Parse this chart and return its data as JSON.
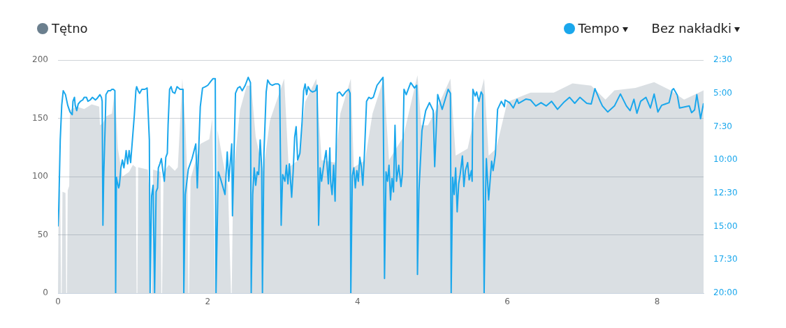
{
  "chart_data": {
    "type": "line",
    "legend": "top",
    "grid": "y",
    "marker": "none",
    "line_style": "solid",
    "xlim": [
      0,
      8.62
    ],
    "xticks": [
      0,
      2,
      4,
      6,
      8
    ],
    "ylim": [
      0,
      200
    ],
    "yticks": [
      0,
      50,
      100,
      150,
      200
    ],
    "y2lim": [
      20,
      2.5
    ],
    "y2ticks": [
      {
        "value": 2.5,
        "label": "2:30"
      },
      {
        "value": 5,
        "label": "5:00"
      },
      {
        "value": 7.5,
        "label": "7:30"
      },
      {
        "value": 10,
        "label": "10:00"
      },
      {
        "value": 12.5,
        "label": "12:30"
      },
      {
        "value": 15,
        "label": "15:00"
      },
      {
        "value": 17.5,
        "label": "17:30"
      },
      {
        "value": 20,
        "label": "20:00"
      }
    ],
    "annotations": [
      "Bez nakładki"
    ],
    "series": [
      {
        "name": "Tętno",
        "type": "area",
        "color": "#6b7f8e",
        "x": [
          0,
          0.01,
          0.03,
          0.04,
          0.05,
          0.06,
          0.1,
          0.11,
          0.12,
          0.13,
          0.15,
          0.16,
          0.25,
          0.35,
          0.45,
          0.55,
          0.56,
          0.6,
          0.65,
          0.72,
          0.76,
          0.8,
          0.86,
          0.95,
          1,
          1.04,
          1.05,
          1.06,
          1.07,
          1.2,
          1.22,
          1.24,
          1.25,
          1.27,
          1.37,
          1.38,
          1.39,
          1.41,
          1.48,
          1.56,
          1.6,
          1.66,
          1.7,
          1.73,
          1.74,
          1.75,
          1.77,
          1.9,
          2.02,
          2.06,
          2.1,
          2.11,
          2.13,
          2.2,
          2.27,
          2.31,
          2.32,
          2.34,
          2.43,
          2.52,
          2.58,
          2.64,
          2.74,
          2.83,
          3.02,
          3.08,
          3.21,
          3.3,
          3.45,
          3.52,
          3.7,
          3.77,
          3.91,
          3.95,
          4.1,
          4.2,
          4.35,
          4.42,
          4.61,
          4.8,
          4.85,
          4.94,
          5.07,
          5.24,
          5.31,
          5.47,
          5.57,
          5.69,
          5.75,
          5.85,
          6,
          6.31,
          6.62,
          6.87,
          7.12,
          7.31,
          7.43,
          7.71,
          7.96,
          8.18,
          8.36,
          8.62
        ],
        "values": [
          0,
          90,
          88,
          0,
          0,
          87,
          86,
          0,
          0,
          88,
          92,
          157,
          160,
          158,
          162,
          160,
          144,
          146,
          152,
          154,
          174,
          124,
          100,
          104,
          110,
          108,
          0,
          0,
          108,
          106,
          84,
          0,
          0,
          106,
          104,
          0,
          0,
          104,
          110,
          105,
          108,
          184,
          144,
          95,
          0,
          0,
          98,
          128,
          132,
          150,
          0,
          0,
          140,
          114,
          92,
          0,
          0,
          100,
          157,
          178,
          178,
          134,
          104,
          148,
          184,
          108,
          114,
          164,
          184,
          114,
          112,
          154,
          184,
          108,
          114,
          154,
          184,
          114,
          134,
          187,
          144,
          144,
          160,
          184,
          118,
          124,
          154,
          184,
          118,
          124,
          164,
          172,
          172,
          180,
          178,
          166,
          174,
          176,
          181,
          174,
          166,
          174
        ]
      },
      {
        "name": "Tempo",
        "type": "line",
        "axis": "y2",
        "color": "#1aa7ec",
        "x": [
          0,
          0.01,
          0.03,
          0.05,
          0.07,
          0.1,
          0.13,
          0.16,
          0.19,
          0.2,
          0.22,
          0.23,
          0.25,
          0.27,
          0.3,
          0.33,
          0.35,
          0.38,
          0.4,
          0.43,
          0.46,
          0.5,
          0.52,
          0.56,
          0.58,
          0.59,
          0.6,
          0.61,
          0.63,
          0.64,
          0.67,
          0.7,
          0.72,
          0.74,
          0.76,
          0.77,
          0.78,
          0.79,
          0.81,
          0.82,
          0.84,
          0.86,
          0.88,
          0.9,
          0.91,
          0.93,
          0.95,
          0.97,
          1.02,
          1.04,
          1.05,
          1.07,
          1.09,
          1.12,
          1.16,
          1.19,
          1.22,
          1.23,
          1.25,
          1.27,
          1.29,
          1.31,
          1.33,
          1.34,
          1.36,
          1.38,
          1.4,
          1.42,
          1.44,
          1.46,
          1.47,
          1.49,
          1.51,
          1.53,
          1.56,
          1.59,
          1.63,
          1.67,
          1.68,
          1.7,
          1.74,
          1.79,
          1.84,
          1.86,
          1.9,
          1.93,
          1.97,
          2,
          2.04,
          2.07,
          2.1,
          2.11,
          2.14,
          2.17,
          2.2,
          2.23,
          2.26,
          2.28,
          2.32,
          2.33,
          2.37,
          2.4,
          2.43,
          2.46,
          2.5,
          2.54,
          2.57,
          2.58,
          2.6,
          2.62,
          2.64,
          2.66,
          2.68,
          2.7,
          2.72,
          2.73,
          2.75,
          2.78,
          2.8,
          2.83,
          2.86,
          2.9,
          2.94,
          2.96,
          2.98,
          3,
          3.03,
          3.05,
          3.07,
          3.09,
          3.12,
          3.14,
          3.16,
          3.18,
          3.2,
          3.23,
          3.26,
          3.28,
          3.3,
          3.32,
          3.34,
          3.37,
          3.4,
          3.44,
          3.46,
          3.48,
          3.5,
          3.52,
          3.55,
          3.58,
          3.61,
          3.63,
          3.64,
          3.66,
          3.68,
          3.7,
          3.73,
          3.76,
          3.8,
          3.84,
          3.88,
          3.9,
          3.91,
          3.93,
          3.95,
          3.97,
          3.99,
          4.01,
          4.03,
          4.05,
          4.07,
          4.09,
          4.12,
          4.15,
          4.18,
          4.21,
          4.26,
          4.34,
          4.36,
          4.38,
          4.4,
          4.42,
          4.44,
          4.46,
          4.48,
          4.5,
          4.52,
          4.55,
          4.58,
          4.6,
          4.62,
          4.65,
          4.71,
          4.76,
          4.79,
          4.8,
          4.82,
          4.86,
          4.91,
          4.96,
          5.01,
          5.03,
          5.07,
          5.13,
          5.21,
          5.24,
          5.25,
          5.27,
          5.29,
          5.31,
          5.33,
          5.35,
          5.37,
          5.4,
          5.42,
          5.44,
          5.47,
          5.49,
          5.52,
          5.53,
          5.54,
          5.57,
          5.59,
          5.62,
          5.65,
          5.67,
          5.69,
          5.71,
          5.72,
          5.75,
          5.79,
          5.81,
          5.84,
          5.87,
          5.92,
          5.96,
          5.97,
          6.03,
          6.08,
          6.13,
          6.15,
          6.25,
          6.31,
          6.38,
          6.45,
          6.52,
          6.59,
          6.67,
          6.75,
          6.83,
          6.9,
          6.97,
          7.06,
          7.12,
          7.17,
          7.24,
          7.27,
          7.34,
          7.43,
          7.51,
          7.59,
          7.64,
          7.69,
          7.73,
          7.78,
          7.85,
          7.91,
          7.96,
          8.01,
          8.06,
          8.11,
          8.16,
          8.2,
          8.22,
          8.27,
          8.3,
          8.43,
          8.46,
          8.5,
          8.53,
          8.58,
          8.62
        ],
        "values": [
          15,
          13.7,
          8.5,
          5.9,
          4.8,
          5.1,
          5.9,
          6.4,
          6.6,
          5.6,
          5.3,
          5.9,
          6.3,
          5.8,
          5.6,
          5.5,
          5.3,
          5.3,
          5.6,
          5.5,
          5.3,
          5.5,
          5.4,
          5.1,
          5.3,
          5.6,
          14.9,
          11.3,
          7.4,
          5.1,
          4.8,
          4.8,
          4.7,
          4.7,
          4.8,
          20,
          11.3,
          11.6,
          12.1,
          11.9,
          10.6,
          10,
          10.6,
          9.8,
          9.3,
          10.3,
          9.3,
          10.2,
          6.6,
          4.8,
          4.5,
          4.8,
          5,
          4.7,
          4.7,
          4.6,
          8.5,
          20,
          12.7,
          11.9,
          20,
          12.4,
          12.1,
          10.6,
          10.3,
          9.9,
          10.8,
          11.6,
          9.8,
          9.5,
          7.4,
          4.7,
          4.5,
          4.9,
          5,
          4.5,
          4.7,
          4.7,
          20,
          12.6,
          10.7,
          9.9,
          8.8,
          12.1,
          6,
          4.6,
          4.5,
          4.4,
          4.1,
          3.9,
          3.9,
          20,
          10.9,
          11.4,
          12,
          12.6,
          9.4,
          11.6,
          8.8,
          14.2,
          5,
          4.6,
          4.5,
          4.8,
          4.4,
          3.8,
          4.2,
          20,
          12.6,
          10.6,
          11.9,
          10.9,
          11.1,
          8.5,
          10.6,
          20,
          9.5,
          4.9,
          4,
          4.3,
          4.4,
          4.3,
          4.3,
          4.4,
          14.9,
          11.1,
          11.6,
          10.4,
          11.8,
          10.3,
          12.8,
          10.9,
          8.3,
          7.5,
          10,
          9.5,
          7.1,
          4.8,
          4.3,
          5.1,
          4.5,
          4.8,
          4.9,
          4.8,
          4.4,
          14.9,
          10.6,
          11.6,
          10.3,
          9.3,
          11.8,
          9.1,
          11.6,
          12.6,
          10.4,
          13.1,
          5,
          4.9,
          5.2,
          4.9,
          4.7,
          5,
          20,
          11.2,
          10.6,
          12.1,
          10.8,
          11.6,
          9.8,
          10.5,
          11.9,
          9.8,
          5.6,
          5.3,
          5.4,
          5.3,
          4.4,
          3.8,
          18.9,
          10.9,
          11.6,
          10.4,
          13,
          11.4,
          12.4,
          7.4,
          11.6,
          10.4,
          12,
          11,
          4.7,
          5.1,
          4.2,
          4.6,
          4.4,
          18.6,
          12.3,
          7.8,
          6.3,
          5.7,
          6.3,
          10.5,
          5.1,
          6.2,
          4.7,
          5,
          20,
          11.3,
          12.6,
          10.6,
          13.9,
          11.8,
          11.1,
          9.7,
          12,
          10.8,
          10.2,
          11.5,
          10.8,
          11.6,
          4.7,
          5.2,
          4.9,
          5.6,
          4.9,
          5.1,
          20,
          12.3,
          9.9,
          13,
          10.1,
          10.8,
          9.6,
          6.2,
          5.6,
          6,
          5.5,
          5.7,
          6.1,
          5.45,
          5.75,
          5.43,
          5.5,
          5.95,
          5.7,
          5.95,
          5.6,
          6.2,
          5.7,
          5.3,
          5.75,
          5.3,
          5.75,
          5.8,
          4.65,
          5.6,
          5.95,
          6.4,
          5.95,
          5.05,
          5.95,
          6.3,
          5.45,
          6.5,
          5.6,
          5.3,
          6.1,
          5.05,
          6.4,
          5.9,
          5.8,
          5.7,
          4.75,
          4.65,
          5.15,
          6.1,
          5.95,
          6.45,
          6.25,
          5.1,
          6.9,
          5.75
        ]
      }
    ]
  }
}
